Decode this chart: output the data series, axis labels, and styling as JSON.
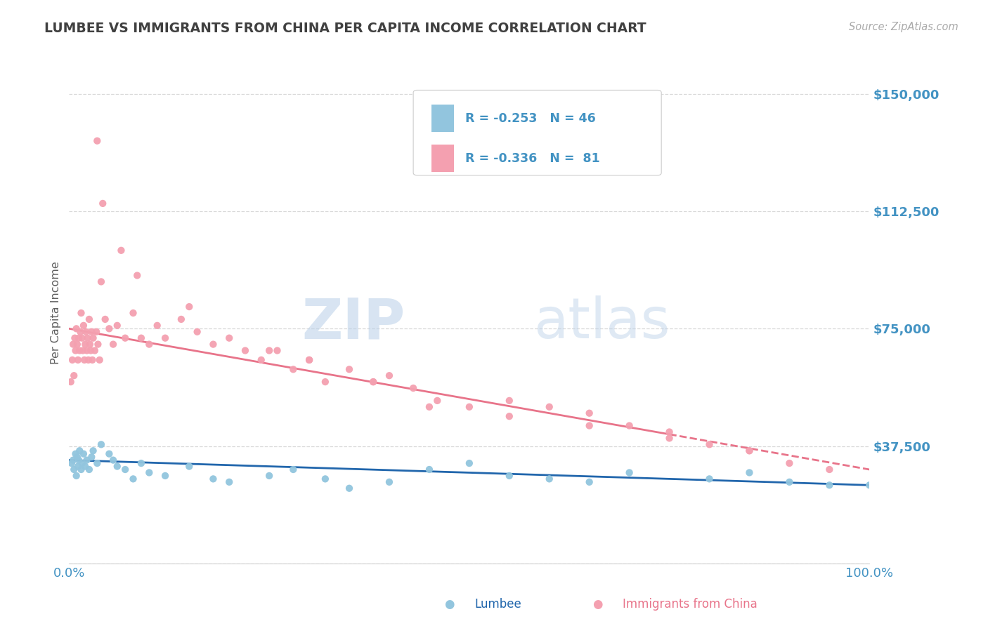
{
  "title": "LUMBEE VS IMMIGRANTS FROM CHINA PER CAPITA INCOME CORRELATION CHART",
  "source_text": "Source: ZipAtlas.com",
  "ylabel": "Per Capita Income",
  "xlim": [
    0,
    100
  ],
  "ylim": [
    0,
    160000
  ],
  "yticks": [
    0,
    37500,
    75000,
    112500,
    150000
  ],
  "ytick_labels": [
    "",
    "$37,500",
    "$75,000",
    "$112,500",
    "$150,000"
  ],
  "xtick_labels": [
    "0.0%",
    "100.0%"
  ],
  "watermark_zip": "ZIP",
  "watermark_atlas": "atlas",
  "legend_r1": "R = -0.253",
  "legend_n1": "N = 46",
  "legend_r2": "R = -0.336",
  "legend_n2": "N =  81",
  "lumbee_color": "#92c5de",
  "china_color": "#f4a0b0",
  "lumbee_line_color": "#2166ac",
  "china_line_color": "#e8748a",
  "title_color": "#404040",
  "axis_label_color": "#606060",
  "tick_label_color": "#4393c3",
  "source_color": "#aaaaaa",
  "background_color": "#ffffff",
  "grid_color": "#d0d0d0",
  "lumbee_x": [
    0.3,
    0.5,
    0.6,
    0.8,
    0.9,
    1.0,
    1.1,
    1.2,
    1.3,
    1.5,
    1.6,
    1.8,
    2.0,
    2.2,
    2.5,
    2.8,
    3.0,
    3.5,
    4.0,
    5.0,
    5.5,
    6.0,
    7.0,
    8.0,
    9.0,
    10.0,
    12.0,
    15.0,
    18.0,
    20.0,
    25.0,
    28.0,
    32.0,
    35.0,
    40.0,
    45.0,
    50.0,
    55.0,
    60.0,
    65.0,
    70.0,
    80.0,
    85.0,
    90.0,
    95.0,
    100.0
  ],
  "lumbee_y": [
    32000,
    33000,
    30000,
    35000,
    28000,
    34000,
    31000,
    33000,
    36000,
    30000,
    32000,
    35000,
    31000,
    33000,
    30000,
    34000,
    36000,
    32000,
    38000,
    35000,
    33000,
    31000,
    30000,
    27000,
    32000,
    29000,
    28000,
    31000,
    27000,
    26000,
    28000,
    30000,
    27000,
    24000,
    26000,
    30000,
    32000,
    28000,
    27000,
    26000,
    29000,
    27000,
    29000,
    26000,
    25000,
    25000
  ],
  "china_x": [
    0.2,
    0.4,
    0.5,
    0.6,
    0.7,
    0.8,
    0.9,
    1.0,
    1.1,
    1.2,
    1.3,
    1.4,
    1.5,
    1.6,
    1.7,
    1.8,
    1.9,
    2.0,
    2.1,
    2.2,
    2.3,
    2.4,
    2.5,
    2.6,
    2.7,
    2.8,
    2.9,
    3.0,
    3.2,
    3.4,
    3.6,
    3.8,
    4.0,
    4.5,
    5.0,
    5.5,
    6.0,
    7.0,
    8.0,
    9.0,
    10.0,
    11.0,
    12.0,
    14.0,
    16.0,
    18.0,
    20.0,
    22.0,
    24.0,
    26.0,
    28.0,
    30.0,
    32.0,
    35.0,
    38.0,
    40.0,
    43.0,
    46.0,
    50.0,
    55.0,
    60.0,
    65.0,
    70.0,
    75.0,
    80.0,
    85.0,
    90.0,
    95.0,
    4.2,
    3.5,
    6.5,
    8.5,
    15.0,
    25.0,
    30.0,
    38.0,
    45.0,
    55.0,
    65.0,
    75.0,
    85.0
  ],
  "china_y": [
    58000,
    65000,
    70000,
    60000,
    72000,
    68000,
    75000,
    70000,
    65000,
    72000,
    68000,
    74000,
    80000,
    72000,
    68000,
    76000,
    65000,
    70000,
    74000,
    68000,
    72000,
    65000,
    78000,
    70000,
    68000,
    74000,
    65000,
    72000,
    68000,
    74000,
    70000,
    65000,
    90000,
    78000,
    75000,
    70000,
    76000,
    72000,
    80000,
    72000,
    70000,
    76000,
    72000,
    78000,
    74000,
    70000,
    72000,
    68000,
    65000,
    68000,
    62000,
    65000,
    58000,
    62000,
    58000,
    60000,
    56000,
    52000,
    50000,
    52000,
    50000,
    48000,
    44000,
    42000,
    38000,
    36000,
    32000,
    30000,
    115000,
    135000,
    100000,
    92000,
    82000,
    68000,
    65000,
    58000,
    50000,
    47000,
    44000,
    40000,
    36000
  ]
}
